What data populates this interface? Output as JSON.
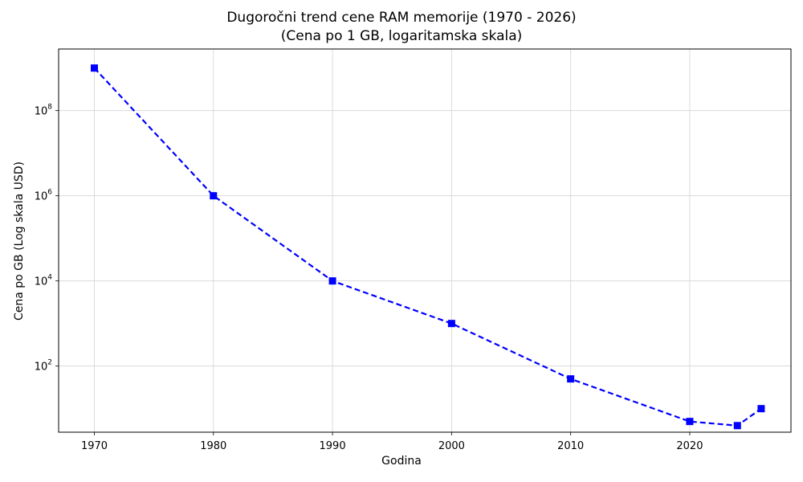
{
  "chart_data": {
    "type": "line",
    "title": "Dugoročni trend cene RAM memorije (1970 - 2026)",
    "subtitle": "(Cena po 1 GB, logaritamska skala)",
    "xlabel": "Godina",
    "ylabel": "Cena po GB (Log skala USD)",
    "y_scale": "log",
    "xlim": [
      1967,
      2028.5
    ],
    "ylim": [
      2.8,
      2800000000
    ],
    "x_ticks": [
      1970,
      1980,
      1990,
      2000,
      2010,
      2020
    ],
    "y_ticks": [
      {
        "value": 100,
        "base": "10",
        "exp": "2"
      },
      {
        "value": 10000,
        "base": "10",
        "exp": "4"
      },
      {
        "value": 1000000,
        "base": "10",
        "exp": "6"
      },
      {
        "value": 100000000,
        "base": "10",
        "exp": "8"
      }
    ],
    "grid": true,
    "series": [
      {
        "color": "#0000ff",
        "line_style": "dashed",
        "marker": "square",
        "x": [
          1970,
          1980,
          1990,
          2000,
          2010,
          2020,
          2024,
          2026
        ],
        "y": [
          1000000000,
          1000000,
          10000,
          1000,
          50,
          5,
          4,
          10
        ]
      }
    ]
  }
}
